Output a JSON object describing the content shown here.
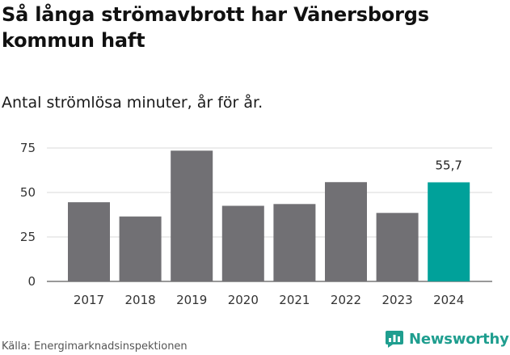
{
  "header": {
    "title": "Så långa strömavbrott har Vänersborgs kommun haft",
    "subtitle": "Antal strömlösa minuter, år för år."
  },
  "footer": {
    "source": "Källa: Energimarknadsinspektionen",
    "brand": "Newsworthy"
  },
  "colors": {
    "bar": "#717074",
    "highlight": "#00a19a",
    "grid": "#d9d9d9",
    "brand": "#1f9e8f"
  },
  "chart_data": {
    "type": "bar",
    "title": "Så långa strömavbrott har Vänersborgs kommun haft",
    "subtitle": "Antal strömlösa minuter, år för år.",
    "xlabel": "",
    "ylabel": "",
    "categories": [
      "2017",
      "2018",
      "2019",
      "2020",
      "2021",
      "2022",
      "2023",
      "2024"
    ],
    "values": [
      44.5,
      36.5,
      73.5,
      42.5,
      43.5,
      55.8,
      38.5,
      55.7
    ],
    "highlight_index": 7,
    "annotations": [
      {
        "category": "2024",
        "text": "55,7"
      }
    ],
    "ylim": [
      0,
      75
    ],
    "yticks": [
      0,
      25,
      50,
      75
    ],
    "grid": true,
    "legend": "none"
  }
}
